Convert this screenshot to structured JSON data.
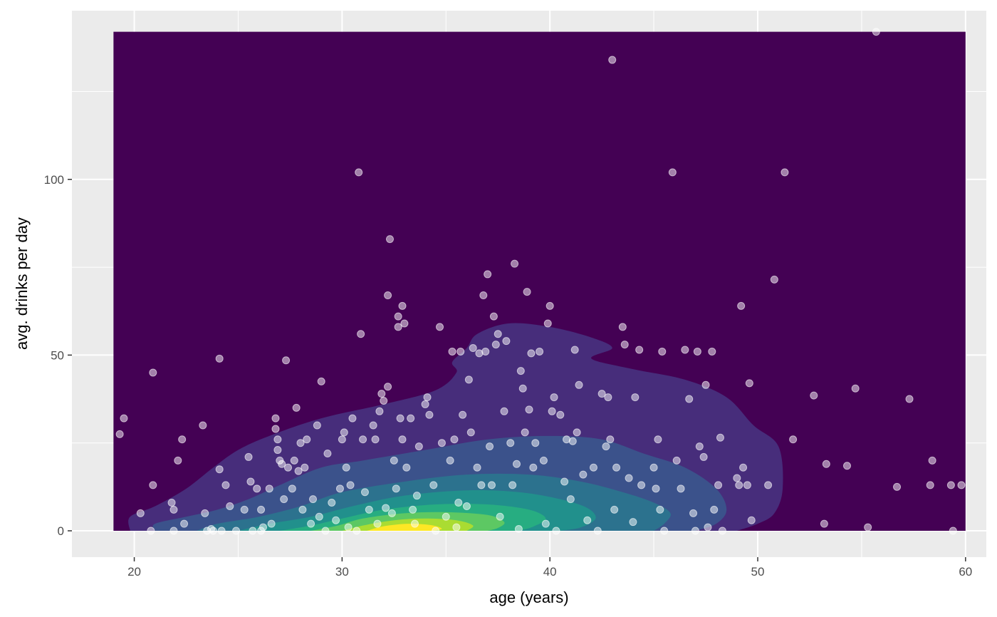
{
  "chart_data": {
    "type": "scatter",
    "overlay": "2d-density-filled-contours",
    "xlabel": "age (years)",
    "ylabel": "avg. drinks per day",
    "xlim": [
      17,
      61
    ],
    "ylim": [
      -7.5,
      148
    ],
    "x_ticks": [
      20,
      30,
      40,
      50,
      60
    ],
    "y_ticks": [
      0,
      50,
      100
    ],
    "grid": true,
    "legend": "none",
    "colors": {
      "panel_background": "#ebebeb",
      "grid": "#ffffff",
      "density_levels": [
        "#440154",
        "#472d7b",
        "#3b528b",
        "#2c728e",
        "#21908c",
        "#27ad81",
        "#5dc863",
        "#aadc32",
        "#fde725"
      ],
      "point": "#ffffff"
    },
    "density_region": {
      "x_range": [
        19,
        60
      ],
      "y_range": [
        0,
        142
      ]
    },
    "density_contours": [
      {
        "level": 1,
        "points": [
          [
            19.8,
            0
          ],
          [
            19.8,
            4
          ],
          [
            21,
            7
          ],
          [
            22.5,
            12
          ],
          [
            23.8,
            18
          ],
          [
            25,
            23
          ],
          [
            26.5,
            27
          ],
          [
            29,
            32
          ],
          [
            32,
            36
          ],
          [
            34.5,
            40
          ],
          [
            35.5,
            45
          ],
          [
            35.3,
            48
          ],
          [
            36,
            52
          ],
          [
            36.5,
            56
          ],
          [
            38,
            59
          ],
          [
            40,
            58
          ],
          [
            42,
            55
          ],
          [
            43,
            52
          ],
          [
            42,
            49
          ],
          [
            44,
            46
          ],
          [
            46.5,
            43
          ],
          [
            48.5,
            38
          ],
          [
            49.8,
            30
          ],
          [
            51,
            24
          ],
          [
            51.2,
            12
          ],
          [
            50.8,
            5
          ],
          [
            50,
            2
          ],
          [
            49,
            0
          ]
        ]
      },
      {
        "level": 2,
        "points": [
          [
            21,
            0
          ],
          [
            21,
            2
          ],
          [
            22.5,
            4
          ],
          [
            24,
            6
          ],
          [
            25.5,
            9
          ],
          [
            27,
            13
          ],
          [
            29,
            18
          ],
          [
            31,
            20
          ],
          [
            34,
            23
          ],
          [
            37,
            26
          ],
          [
            40,
            27
          ],
          [
            42.5,
            26
          ],
          [
            44.5,
            22
          ],
          [
            46.5,
            18
          ],
          [
            48,
            12
          ],
          [
            48.5,
            6
          ],
          [
            48,
            2
          ],
          [
            47,
            0
          ]
        ]
      },
      {
        "level": 3,
        "points": [
          [
            23,
            0
          ],
          [
            24,
            2
          ],
          [
            26,
            4
          ],
          [
            28,
            7
          ],
          [
            30,
            11
          ],
          [
            33,
            14
          ],
          [
            36,
            16
          ],
          [
            39,
            16
          ],
          [
            41.5,
            14
          ],
          [
            43.5,
            11
          ],
          [
            45,
            8
          ],
          [
            45.8,
            5
          ],
          [
            45.5,
            2
          ],
          [
            45,
            0
          ]
        ]
      },
      {
        "level": 4,
        "points": [
          [
            25,
            0
          ],
          [
            26.5,
            2
          ],
          [
            28.5,
            4
          ],
          [
            30.5,
            7
          ],
          [
            33,
            10
          ],
          [
            36,
            11.5
          ],
          [
            38.5,
            11
          ],
          [
            40.5,
            9
          ],
          [
            41.8,
            6.5
          ],
          [
            42.2,
            3.5
          ],
          [
            41.5,
            1
          ],
          [
            40.5,
            0
          ]
        ]
      },
      {
        "level": 5,
        "points": [
          [
            27,
            0
          ],
          [
            28.5,
            1.5
          ],
          [
            30,
            3.5
          ],
          [
            32,
            6
          ],
          [
            34.5,
            7.5
          ],
          [
            37,
            7.5
          ],
          [
            39,
            6
          ],
          [
            39.8,
            3.5
          ],
          [
            39.2,
            1.2
          ],
          [
            38.5,
            0
          ]
        ]
      },
      {
        "level": 6,
        "points": [
          [
            28.5,
            0
          ],
          [
            29.8,
            1.5
          ],
          [
            31,
            3.5
          ],
          [
            33,
            5
          ],
          [
            35,
            5.3
          ],
          [
            37,
            4.5
          ],
          [
            37.8,
            2.5
          ],
          [
            37.5,
            0.8
          ],
          [
            37,
            0
          ]
        ]
      },
      {
        "level": 7,
        "points": [
          [
            30,
            0
          ],
          [
            31,
            1.5
          ],
          [
            32.5,
            3
          ],
          [
            34,
            3.5
          ],
          [
            35.5,
            3
          ],
          [
            36.3,
            1.5
          ],
          [
            36,
            0
          ]
        ]
      },
      {
        "level": 8,
        "points": [
          [
            31.2,
            0
          ],
          [
            32,
            1.3
          ],
          [
            33.2,
            2
          ],
          [
            34.3,
            1.6
          ],
          [
            34.8,
            0.6
          ],
          [
            34.4,
            0
          ]
        ]
      }
    ],
    "points": [
      [
        19.3,
        27.5
      ],
      [
        19.5,
        32
      ],
      [
        20.3,
        5
      ],
      [
        20.8,
        0
      ],
      [
        20.9,
        45
      ],
      [
        20.9,
        13
      ],
      [
        21.8,
        8
      ],
      [
        21.9,
        6
      ],
      [
        21.9,
        0
      ],
      [
        22.1,
        20
      ],
      [
        22.3,
        26
      ],
      [
        22.4,
        2
      ],
      [
        23.3,
        30
      ],
      [
        23.4,
        5
      ],
      [
        23.5,
        0
      ],
      [
        23.7,
        0.5
      ],
      [
        23.8,
        0
      ],
      [
        24.1,
        17.5
      ],
      [
        24.1,
        49
      ],
      [
        24.2,
        0
      ],
      [
        24.4,
        13
      ],
      [
        24.6,
        7
      ],
      [
        24.9,
        0
      ],
      [
        25.3,
        6
      ],
      [
        25.5,
        21
      ],
      [
        25.6,
        14
      ],
      [
        25.7,
        0
      ],
      [
        25.9,
        12
      ],
      [
        26.1,
        6
      ],
      [
        26.1,
        0
      ],
      [
        26.2,
        1
      ],
      [
        26.5,
        12
      ],
      [
        26.6,
        2
      ],
      [
        26.8,
        29
      ],
      [
        26.8,
        32
      ],
      [
        26.9,
        26
      ],
      [
        26.9,
        23
      ],
      [
        27,
        20
      ],
      [
        27.1,
        19
      ],
      [
        27.2,
        9
      ],
      [
        27.3,
        48.5
      ],
      [
        27.4,
        18
      ],
      [
        27.6,
        12
      ],
      [
        27.7,
        20
      ],
      [
        27.8,
        35
      ],
      [
        27.9,
        17
      ],
      [
        28,
        25
      ],
      [
        28.1,
        6
      ],
      [
        28.2,
        18
      ],
      [
        28.3,
        26
      ],
      [
        28.5,
        2
      ],
      [
        28.6,
        9
      ],
      [
        28.8,
        30
      ],
      [
        28.9,
        4
      ],
      [
        29,
        42.5
      ],
      [
        29.2,
        0
      ],
      [
        29.3,
        22
      ],
      [
        29.5,
        8
      ],
      [
        29.7,
        3
      ],
      [
        29.9,
        12
      ],
      [
        30,
        26
      ],
      [
        30.1,
        28
      ],
      [
        30.2,
        18
      ],
      [
        30.3,
        1
      ],
      [
        30.4,
        13
      ],
      [
        30.5,
        32
      ],
      [
        30.7,
        0
      ],
      [
        30.8,
        102
      ],
      [
        30.9,
        56
      ],
      [
        31,
        26
      ],
      [
        31.1,
        11
      ],
      [
        31.3,
        6
      ],
      [
        31.5,
        30
      ],
      [
        31.6,
        26
      ],
      [
        31.7,
        2
      ],
      [
        31.8,
        34
      ],
      [
        31.9,
        39
      ],
      [
        32,
        37
      ],
      [
        32.1,
        6.5
      ],
      [
        32.2,
        67
      ],
      [
        32.2,
        41
      ],
      [
        32.3,
        83
      ],
      [
        32.4,
        5
      ],
      [
        32.5,
        20
      ],
      [
        32.6,
        12
      ],
      [
        32.7,
        61
      ],
      [
        32.7,
        58
      ],
      [
        32.8,
        32
      ],
      [
        32.9,
        26
      ],
      [
        32.9,
        64
      ],
      [
        33,
        59
      ],
      [
        33.1,
        18
      ],
      [
        33.3,
        32
      ],
      [
        33.4,
        6
      ],
      [
        33.5,
        2
      ],
      [
        33.6,
        10
      ],
      [
        33.7,
        24
      ],
      [
        34,
        36
      ],
      [
        34.1,
        38
      ],
      [
        34.2,
        33
      ],
      [
        34.4,
        13
      ],
      [
        34.5,
        0
      ],
      [
        34.7,
        58
      ],
      [
        34.8,
        25
      ],
      [
        35,
        4
      ],
      [
        35.2,
        20
      ],
      [
        35.3,
        51
      ],
      [
        35.4,
        26
      ],
      [
        35.5,
        1
      ],
      [
        35.6,
        8
      ],
      [
        35.7,
        51
      ],
      [
        35.8,
        33
      ],
      [
        36,
        7
      ],
      [
        36.1,
        43
      ],
      [
        36.2,
        28
      ],
      [
        36.3,
        52
      ],
      [
        36.5,
        18
      ],
      [
        36.6,
        50.5
      ],
      [
        36.7,
        13
      ],
      [
        36.8,
        67
      ],
      [
        36.9,
        51
      ],
      [
        37,
        73
      ],
      [
        37.1,
        24
      ],
      [
        37.2,
        13
      ],
      [
        37.3,
        61
      ],
      [
        37.4,
        53
      ],
      [
        37.5,
        56
      ],
      [
        37.6,
        4
      ],
      [
        37.8,
        34
      ],
      [
        37.9,
        54
      ],
      [
        38.1,
        25
      ],
      [
        38.2,
        13
      ],
      [
        38.3,
        76
      ],
      [
        38.4,
        19
      ],
      [
        38.5,
        0.5
      ],
      [
        38.6,
        45.5
      ],
      [
        38.7,
        40.5
      ],
      [
        38.8,
        28
      ],
      [
        38.9,
        68
      ],
      [
        39,
        34.5
      ],
      [
        39.1,
        50.5
      ],
      [
        39.2,
        18
      ],
      [
        39.3,
        25
      ],
      [
        39.5,
        51
      ],
      [
        39.7,
        20
      ],
      [
        39.8,
        2
      ],
      [
        39.9,
        59
      ],
      [
        40,
        64
      ],
      [
        40.1,
        34
      ],
      [
        40.2,
        38
      ],
      [
        40.3,
        0
      ],
      [
        40.5,
        33
      ],
      [
        40.7,
        14
      ],
      [
        40.8,
        26
      ],
      [
        41,
        9
      ],
      [
        41.1,
        25.5
      ],
      [
        41.2,
        51.5
      ],
      [
        41.3,
        28
      ],
      [
        41.4,
        41.5
      ],
      [
        41.6,
        16
      ],
      [
        41.8,
        3
      ],
      [
        42.1,
        18
      ],
      [
        42.3,
        0
      ],
      [
        42.5,
        39
      ],
      [
        42.7,
        24
      ],
      [
        42.8,
        38
      ],
      [
        42.9,
        26
      ],
      [
        43,
        134
      ],
      [
        43.1,
        6
      ],
      [
        43.2,
        18
      ],
      [
        43.5,
        58
      ],
      [
        43.6,
        53
      ],
      [
        43.8,
        15
      ],
      [
        44,
        2.5
      ],
      [
        44.1,
        38
      ],
      [
        44.3,
        51.5
      ],
      [
        44.4,
        13
      ],
      [
        45,
        18
      ],
      [
        45.1,
        12
      ],
      [
        45.2,
        26
      ],
      [
        45.3,
        6
      ],
      [
        45.4,
        51
      ],
      [
        45.5,
        0
      ],
      [
        45.9,
        102
      ],
      [
        46.1,
        20
      ],
      [
        46.3,
        12
      ],
      [
        46.5,
        51.5
      ],
      [
        46.7,
        37.5
      ],
      [
        46.9,
        5
      ],
      [
        47,
        0
      ],
      [
        47.1,
        51
      ],
      [
        47.2,
        24
      ],
      [
        47.4,
        21
      ],
      [
        47.5,
        41.5
      ],
      [
        47.6,
        1
      ],
      [
        47.8,
        51
      ],
      [
        47.9,
        6
      ],
      [
        48.1,
        13
      ],
      [
        48.2,
        26.5
      ],
      [
        48.3,
        0
      ],
      [
        49,
        15
      ],
      [
        49.1,
        13
      ],
      [
        49.2,
        64
      ],
      [
        49.3,
        18
      ],
      [
        49.5,
        13
      ],
      [
        49.6,
        42
      ],
      [
        49.7,
        3
      ],
      [
        50.5,
        13
      ],
      [
        50.8,
        71.5
      ],
      [
        51.3,
        102
      ],
      [
        51.7,
        26
      ],
      [
        52.7,
        38.5
      ],
      [
        53.2,
        2
      ],
      [
        53.3,
        19
      ],
      [
        54.3,
        18.5
      ],
      [
        54.7,
        40.5
      ],
      [
        55.3,
        1
      ],
      [
        55.7,
        142
      ],
      [
        56.7,
        12.5
      ],
      [
        57.3,
        37.5
      ],
      [
        58.3,
        13
      ],
      [
        58.4,
        20
      ],
      [
        59.3,
        13
      ],
      [
        59.4,
        0
      ],
      [
        59.8,
        13
      ]
    ]
  }
}
